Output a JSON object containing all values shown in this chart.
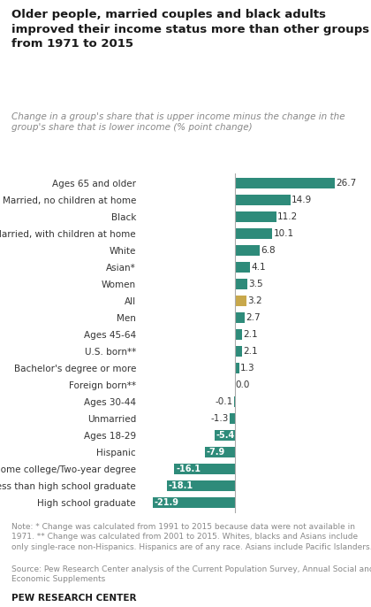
{
  "title": "Older people, married couples and black adults\nimproved their income status more than other groups\nfrom 1971 to 2015",
  "subtitle": "Change in a group's share that is upper income minus the change in the\ngroup's share that is lower income (% point change)",
  "categories": [
    "Ages 65 and older",
    "Married, no children at home",
    "Black",
    "Married, with children at home",
    "White",
    "Asian*",
    "Women",
    "All",
    "Men",
    "Ages 45-64",
    "U.S. born**",
    "Bachelor's degree or more",
    "Foreign born**",
    "Ages 30-44",
    "Unmarried",
    "Ages 18-29",
    "Hispanic",
    "Some college/Two-year degree",
    "Less than high school graduate",
    "High school graduate"
  ],
  "values": [
    26.7,
    14.9,
    11.2,
    10.1,
    6.8,
    4.1,
    3.5,
    3.2,
    2.7,
    2.1,
    2.1,
    1.3,
    0.0,
    -0.1,
    -1.3,
    -5.4,
    -7.9,
    -16.1,
    -18.1,
    -21.9
  ],
  "bar_colors": [
    "#2E8B7A",
    "#2E8B7A",
    "#2E8B7A",
    "#2E8B7A",
    "#2E8B7A",
    "#2E8B7A",
    "#2E8B7A",
    "#C8A84B",
    "#2E8B7A",
    "#2E8B7A",
    "#2E8B7A",
    "#2E8B7A",
    "#2E8B7A",
    "#2E8B7A",
    "#2E8B7A",
    "#2E8B7A",
    "#2E8B7A",
    "#2E8B7A",
    "#2E8B7A",
    "#2E8B7A"
  ],
  "label_inside_threshold": -5.0,
  "note": "Note: * Change was calculated from 1991 to 2015 because data were not available in\n1971. ** Change was calculated from 2001 to 2015. Whites, blacks and Asians include\nonly single-race non-Hispanics. Hispanics are of any race. Asians include Pacific Islanders.",
  "source": "Source: Pew Research Center analysis of the Current Population Survey, Annual Social and\nEconomic Supplements",
  "brand": "PEW RESEARCH CENTER",
  "teal_color": "#2E8B7A",
  "gold_color": "#C8A84B",
  "title_color": "#1a1a1a",
  "subtitle_color": "#888888",
  "note_color": "#888888",
  "xlim": [
    -25,
    32
  ]
}
